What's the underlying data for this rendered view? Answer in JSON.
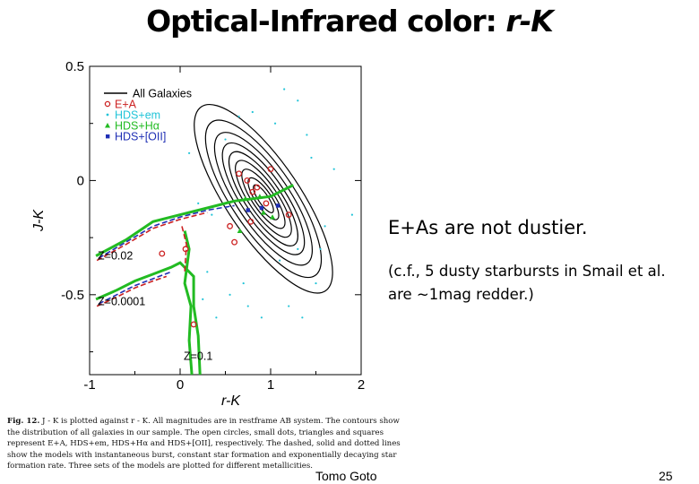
{
  "slide": {
    "title_main": "Optical-Infrared color: ",
    "title_italic": "r-K",
    "note_main": "E+As are not dustier.",
    "note_sub": "(c.f., 5 dusty starbursts in Smail et al. are ~1mag redder.)",
    "author": "Tomo Goto",
    "page": "25"
  },
  "caption": {
    "label": "Fig. 12.",
    "text": "J - K is plotted against r - K. All magnitudes are in restframe AB system. The contours show the distribution of all galaxies in our sample. The open circles, small dots, triangles and squares represent E+A, HDS+em, HDS+Hα and HDS+[OII], respectively. The dashed, solid and dotted lines show the models with instantaneous burst, constant star formation and exponentially decaying star formation rate. Three sets of the models are plotted for different metallicities."
  },
  "colors": {
    "contour": "#000000",
    "ea": "#cc2222",
    "hds_em": "#22c4d8",
    "hds_ha": "#22bb22",
    "hds_oii": "#1f2fb5"
  },
  "chart_data": {
    "type": "scatter",
    "xlabel": "r-K",
    "ylabel": "J-K",
    "xlim": [
      -1,
      2
    ],
    "ylim": [
      -0.85,
      0.5
    ],
    "xticks": [
      -1,
      0,
      1,
      2
    ],
    "yticks": [
      0.5,
      0,
      -0.5
    ],
    "xtick_labels": [
      "-1",
      "0",
      "1",
      "2"
    ],
    "ytick_labels": [
      "0.5",
      "0",
      "-0.5"
    ],
    "legend_position": "top-left",
    "legend": [
      {
        "label": "All Galaxies",
        "marker": "line",
        "color": "#000000"
      },
      {
        "label": "E+A",
        "marker": "circle",
        "color": "#cc2222"
      },
      {
        "label": "HDS+em",
        "marker": "dot",
        "color": "#22c4d8"
      },
      {
        "label": "HDS+Hα",
        "marker": "triangle",
        "color": "#22bb22"
      },
      {
        "label": "HDS+[OII]",
        "marker": "square",
        "color": "#1f2fb5"
      }
    ],
    "annotations": [
      {
        "text": "Z=0.02",
        "x": -0.95,
        "y": -0.33
      },
      {
        "text": "Z=0.0001",
        "x": -0.95,
        "y": -0.53
      },
      {
        "text": "Z=0.1",
        "x": 0.0,
        "y": -0.77
      }
    ],
    "contours": {
      "center": [
        0.92,
        -0.08
      ],
      "half_widths": [
        0.1,
        0.16,
        0.22,
        0.29,
        0.36,
        0.44,
        0.53,
        0.63,
        0.74
      ],
      "half_heights": [
        0.08,
        0.12,
        0.17,
        0.22,
        0.27,
        0.32,
        0.38,
        0.45,
        0.54
      ],
      "tilt_deg": 56
    },
    "series": [
      {
        "name": "E+A",
        "marker": "circle",
        "points": [
          [
            0.65,
            0.03
          ],
          [
            0.74,
            0.0
          ],
          [
            0.8,
            -0.05
          ],
          [
            0.78,
            -0.18
          ],
          [
            0.55,
            -0.2
          ],
          [
            0.6,
            -0.27
          ],
          [
            1.0,
            0.05
          ],
          [
            0.85,
            -0.03
          ],
          [
            0.06,
            -0.3
          ],
          [
            -0.2,
            -0.32
          ],
          [
            0.95,
            -0.1
          ],
          [
            1.2,
            -0.15
          ],
          [
            0.15,
            -0.63
          ]
        ]
      },
      {
        "name": "HDS+em",
        "marker": "dot",
        "points": [
          [
            0.5,
            0.18
          ],
          [
            1.4,
            0.2
          ],
          [
            0.2,
            -0.1
          ],
          [
            1.6,
            -0.2
          ],
          [
            0.3,
            -0.4
          ],
          [
            0.7,
            -0.45
          ],
          [
            1.1,
            -0.35
          ],
          [
            1.3,
            0.35
          ],
          [
            0.4,
            -0.6
          ],
          [
            0.9,
            -0.6
          ],
          [
            1.7,
            0.05
          ],
          [
            0.1,
            0.12
          ],
          [
            1.5,
            -0.45
          ],
          [
            0.65,
            0.28
          ],
          [
            1.2,
            -0.55
          ],
          [
            0.55,
            -0.5
          ],
          [
            1.45,
            0.1
          ],
          [
            1.9,
            -0.15
          ],
          [
            0.35,
            -0.15
          ],
          [
            1.05,
            0.25
          ],
          [
            0.25,
            -0.52
          ],
          [
            1.3,
            -0.3
          ],
          [
            0.8,
            0.3
          ],
          [
            0.75,
            -0.55
          ],
          [
            1.15,
            0.4
          ],
          [
            1.55,
            -0.3
          ],
          [
            1.35,
            -0.6
          ]
        ]
      },
      {
        "name": "HDS+Hα",
        "marker": "triangle",
        "points": [
          [
            0.72,
            -0.08
          ],
          [
            0.88,
            -0.07
          ],
          [
            0.92,
            -0.14
          ],
          [
            0.66,
            -0.22
          ],
          [
            1.02,
            -0.16
          ]
        ]
      },
      {
        "name": "HDS+[OII]",
        "marker": "square",
        "points": [
          [
            0.75,
            -0.13
          ],
          [
            0.9,
            -0.12
          ],
          [
            1.08,
            -0.11
          ]
        ]
      }
    ],
    "model_tracks": [
      {
        "name": "Z=0.02",
        "color": "#22bb22",
        "style": "solid",
        "points": [
          [
            -0.93,
            -0.33
          ],
          [
            -0.6,
            -0.26
          ],
          [
            -0.3,
            -0.18
          ],
          [
            0.0,
            -0.15
          ],
          [
            0.3,
            -0.12
          ],
          [
            0.6,
            -0.09
          ],
          [
            1.0,
            -0.07
          ],
          [
            1.25,
            -0.02
          ]
        ]
      },
      {
        "name": "Z=0.02",
        "color": "#1f2fb5",
        "style": "dashed",
        "points": [
          [
            -0.9,
            -0.34
          ],
          [
            -0.6,
            -0.27
          ],
          [
            -0.3,
            -0.2
          ],
          [
            0.0,
            -0.16
          ],
          [
            0.3,
            -0.13
          ],
          [
            0.6,
            -0.11
          ]
        ]
      },
      {
        "name": "Z=0.02",
        "color": "#cc2222",
        "style": "dashed",
        "points": [
          [
            -0.92,
            -0.35
          ],
          [
            -0.6,
            -0.28
          ],
          [
            -0.3,
            -0.21
          ],
          [
            0.0,
            -0.17
          ],
          [
            0.3,
            -0.14
          ]
        ]
      },
      {
        "name": "Z=0.0001",
        "color": "#22bb22",
        "style": "solid",
        "points": [
          [
            -0.93,
            -0.52
          ],
          [
            -0.7,
            -0.48
          ],
          [
            -0.5,
            -0.44
          ],
          [
            -0.3,
            -0.41
          ],
          [
            -0.1,
            -0.38
          ],
          [
            0.0,
            -0.36
          ],
          [
            0.15,
            -0.42
          ],
          [
            0.15,
            -0.55
          ],
          [
            0.2,
            -0.68
          ],
          [
            0.22,
            -0.85
          ]
        ]
      },
      {
        "name": "Z=0.0001",
        "color": "#1f2fb5",
        "style": "dashed",
        "points": [
          [
            -0.9,
            -0.54
          ],
          [
            -0.7,
            -0.5
          ],
          [
            -0.5,
            -0.46
          ],
          [
            -0.3,
            -0.43
          ],
          [
            -0.1,
            -0.4
          ]
        ]
      },
      {
        "name": "Z=0.0001",
        "color": "#cc2222",
        "style": "dashed",
        "points": [
          [
            -0.92,
            -0.55
          ],
          [
            -0.7,
            -0.51
          ],
          [
            -0.5,
            -0.47
          ],
          [
            -0.3,
            -0.44
          ],
          [
            -0.15,
            -0.42
          ]
        ]
      },
      {
        "name": "Z=0.1",
        "color": "#22bb22",
        "style": "solid",
        "points": [
          [
            0.05,
            -0.22
          ],
          [
            0.1,
            -0.3
          ],
          [
            0.05,
            -0.45
          ],
          [
            0.12,
            -0.55
          ],
          [
            0.1,
            -0.7
          ],
          [
            0.13,
            -0.85
          ]
        ]
      },
      {
        "name": "Z=0.1",
        "color": "#cc2222",
        "style": "dashed",
        "points": [
          [
            0.02,
            -0.2
          ],
          [
            0.07,
            -0.28
          ],
          [
            0.05,
            -0.4
          ]
        ]
      }
    ]
  }
}
